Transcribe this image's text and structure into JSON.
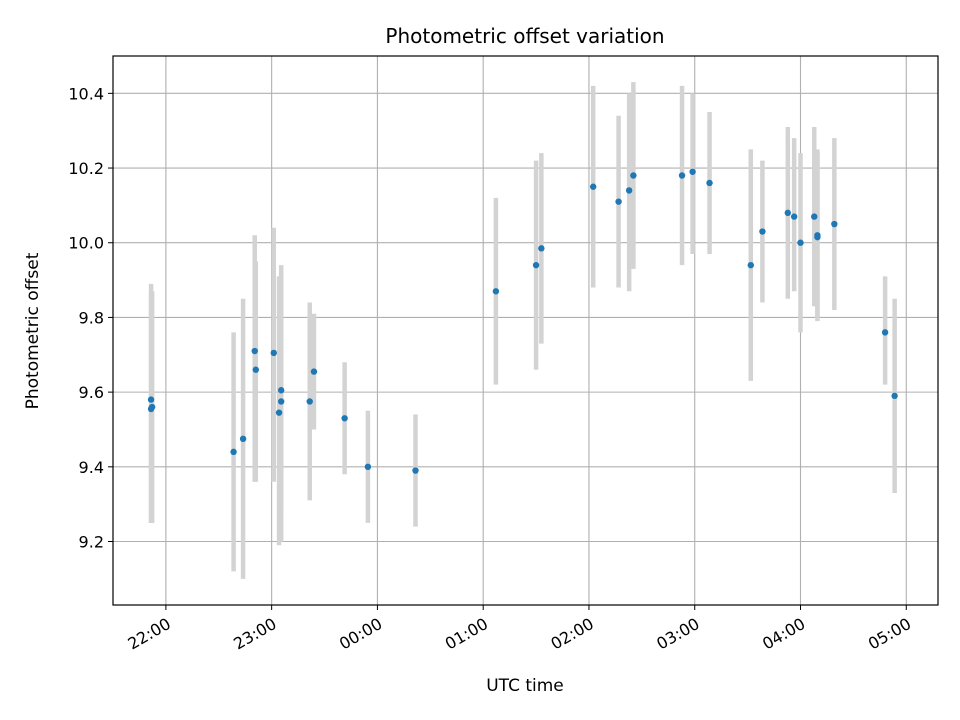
{
  "chart_data": {
    "type": "scatter",
    "title": "Photometric offset variation",
    "xlabel": "UTC time",
    "ylabel": "Photometric offset",
    "x_unit": "UTC hours (times after midnight continue past 24)",
    "xlim": [
      21.5,
      29.3
    ],
    "ylim": [
      9.03,
      10.5
    ],
    "x_ticks": [
      {
        "value": 22,
        "label": "22:00"
      },
      {
        "value": 23,
        "label": "23:00"
      },
      {
        "value": 24,
        "label": "00:00"
      },
      {
        "value": 25,
        "label": "01:00"
      },
      {
        "value": 26,
        "label": "02:00"
      },
      {
        "value": 27,
        "label": "03:00"
      },
      {
        "value": 28,
        "label": "04:00"
      },
      {
        "value": 29,
        "label": "05:00"
      }
    ],
    "y_ticks": [
      {
        "value": 9.2,
        "label": "9.2"
      },
      {
        "value": 9.4,
        "label": "9.4"
      },
      {
        "value": 9.6,
        "label": "9.6"
      },
      {
        "value": 9.8,
        "label": "9.8"
      },
      {
        "value": 10.0,
        "label": "10.0"
      },
      {
        "value": 10.2,
        "label": "10.2"
      },
      {
        "value": 10.4,
        "label": "10.4"
      }
    ],
    "grid": true,
    "point_color": "#1f77b4",
    "errorbar_color": "#d3d3d3",
    "points": [
      {
        "x": 21.86,
        "y": 9.58,
        "lo": 9.25,
        "hi": 9.89
      },
      {
        "x": 21.86,
        "y": 9.555,
        "lo": 9.25,
        "hi": 9.87
      },
      {
        "x": 21.87,
        "y": 9.56,
        "lo": 9.25,
        "hi": 9.87
      },
      {
        "x": 22.64,
        "y": 9.44,
        "lo": 9.12,
        "hi": 9.76
      },
      {
        "x": 22.73,
        "y": 9.475,
        "lo": 9.1,
        "hi": 9.85
      },
      {
        "x": 22.84,
        "y": 9.71,
        "lo": 9.36,
        "hi": 10.02
      },
      {
        "x": 22.85,
        "y": 9.66,
        "lo": 9.36,
        "hi": 9.95
      },
      {
        "x": 23.02,
        "y": 9.705,
        "lo": 9.36,
        "hi": 10.04
      },
      {
        "x": 23.07,
        "y": 9.545,
        "lo": 9.19,
        "hi": 9.91
      },
      {
        "x": 23.09,
        "y": 9.605,
        "lo": 9.29,
        "hi": 9.94
      },
      {
        "x": 23.09,
        "y": 9.575,
        "lo": 9.2,
        "hi": 9.92
      },
      {
        "x": 23.36,
        "y": 9.575,
        "lo": 9.31,
        "hi": 9.84
      },
      {
        "x": 23.4,
        "y": 9.655,
        "lo": 9.5,
        "hi": 9.81
      },
      {
        "x": 23.69,
        "y": 9.53,
        "lo": 9.38,
        "hi": 9.68
      },
      {
        "x": 23.91,
        "y": 9.4,
        "lo": 9.25,
        "hi": 9.55
      },
      {
        "x": 24.36,
        "y": 9.39,
        "lo": 9.24,
        "hi": 9.54
      },
      {
        "x": 25.12,
        "y": 9.87,
        "lo": 9.62,
        "hi": 10.12
      },
      {
        "x": 25.5,
        "y": 9.94,
        "lo": 9.66,
        "hi": 10.22
      },
      {
        "x": 25.55,
        "y": 9.985,
        "lo": 9.73,
        "hi": 10.24
      },
      {
        "x": 26.04,
        "y": 10.15,
        "lo": 9.88,
        "hi": 10.42
      },
      {
        "x": 26.28,
        "y": 10.11,
        "lo": 9.88,
        "hi": 10.34
      },
      {
        "x": 26.38,
        "y": 10.14,
        "lo": 9.87,
        "hi": 10.4
      },
      {
        "x": 26.42,
        "y": 10.18,
        "lo": 9.93,
        "hi": 10.43
      },
      {
        "x": 26.88,
        "y": 10.18,
        "lo": 9.94,
        "hi": 10.42
      },
      {
        "x": 26.98,
        "y": 10.19,
        "lo": 9.97,
        "hi": 10.4
      },
      {
        "x": 27.14,
        "y": 10.16,
        "lo": 9.97,
        "hi": 10.35
      },
      {
        "x": 27.53,
        "y": 9.94,
        "lo": 9.63,
        "hi": 10.25
      },
      {
        "x": 27.64,
        "y": 10.03,
        "lo": 9.84,
        "hi": 10.22
      },
      {
        "x": 27.88,
        "y": 10.08,
        "lo": 9.85,
        "hi": 10.31
      },
      {
        "x": 27.94,
        "y": 10.07,
        "lo": 9.87,
        "hi": 10.28
      },
      {
        "x": 28.0,
        "y": 10.0,
        "lo": 9.76,
        "hi": 10.24
      },
      {
        "x": 28.13,
        "y": 10.07,
        "lo": 9.83,
        "hi": 10.31
      },
      {
        "x": 28.16,
        "y": 10.02,
        "lo": 9.79,
        "hi": 10.25
      },
      {
        "x": 28.16,
        "y": 10.015,
        "lo": 9.8,
        "hi": 10.24
      },
      {
        "x": 28.32,
        "y": 10.05,
        "lo": 9.82,
        "hi": 10.28
      },
      {
        "x": 28.8,
        "y": 9.76,
        "lo": 9.62,
        "hi": 9.91
      },
      {
        "x": 28.89,
        "y": 9.59,
        "lo": 9.33,
        "hi": 9.85
      }
    ]
  }
}
